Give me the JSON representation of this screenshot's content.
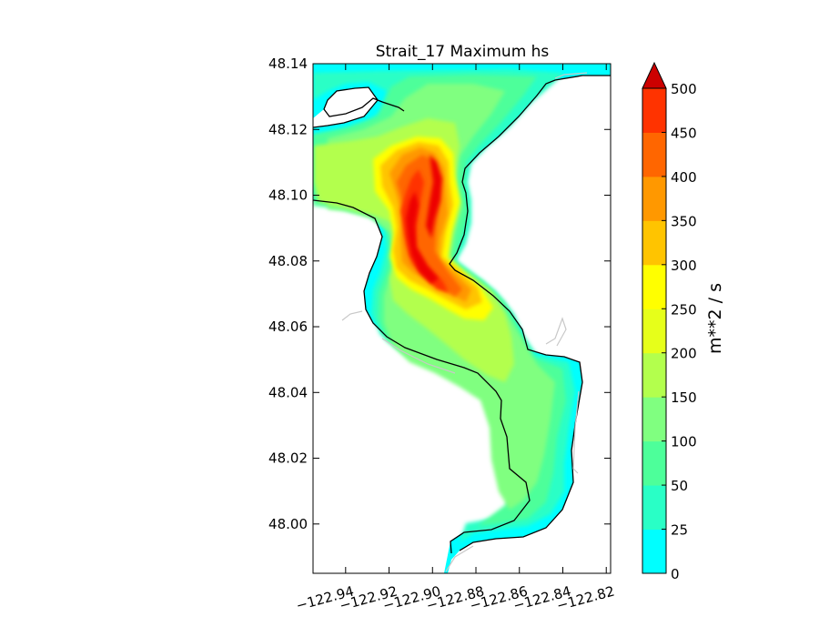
{
  "chart_data": {
    "type": "heatmap",
    "title": "Strait_17 Maximum hs",
    "xlim": [
      -122.955,
      -122.818
    ],
    "ylim": [
      47.985,
      48.14
    ],
    "x_ticks": [
      -122.94,
      -122.92,
      -122.9,
      -122.88,
      -122.86,
      -122.84,
      -122.82
    ],
    "x_tick_labels": [
      "−122.94",
      "−122.92",
      "−122.90",
      "−122.88",
      "−122.86",
      "−122.84",
      "−122.82"
    ],
    "y_ticks": [
      48.14,
      48.12,
      48.1,
      48.08,
      48.06,
      48.04,
      48.02,
      48.0
    ],
    "y_tick_labels": [
      "48.14",
      "48.12",
      "48.10",
      "48.08",
      "48.06",
      "48.04",
      "48.02",
      "48.00"
    ],
    "colorbar": {
      "label": "m**2 / s",
      "extend": "max",
      "levels": [
        0,
        25,
        50,
        100,
        150,
        200,
        250,
        300,
        350,
        400,
        450,
        500
      ],
      "tick_labels": [
        "0",
        "25",
        "50",
        "100",
        "150",
        "200",
        "250",
        "300",
        "350",
        "400",
        "450",
        "500"
      ],
      "colors": [
        "#00ffff",
        "#29ffc6",
        "#4dff9a",
        "#80ff80",
        "#b3ff4d",
        "#e6ff1a",
        "#ffff00",
        "#ffc400",
        "#ff9800",
        "#ff6600",
        "#ff3300",
        "#ee0000"
      ],
      "extend_color": "#cc0000"
    },
    "land_color": "#ffffff",
    "coastline_color": "#000000",
    "grid": false
  }
}
